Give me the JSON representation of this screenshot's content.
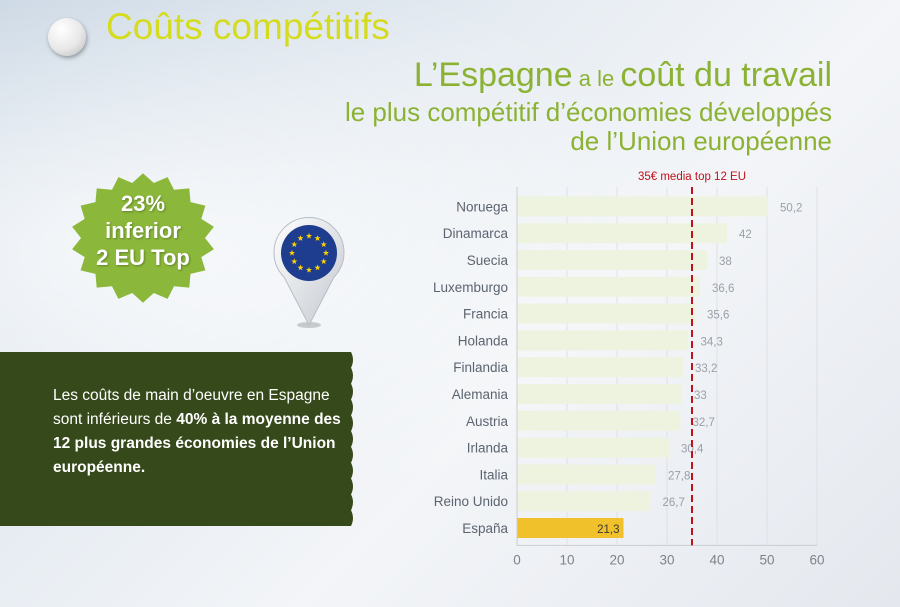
{
  "section_title": "Coûts compétitifs",
  "headline": {
    "part1": "L’Espagne",
    "part2": " a le ",
    "part3": "coût du travail",
    "line2": "le plus compétitif d’économies développés",
    "line3": "de l’Union européenne"
  },
  "badge": {
    "line1": "23%",
    "line2": "inferior",
    "line3": "2 EU Top",
    "color": "#8bb83a"
  },
  "eu_pin": {
    "icon": "eu-flag-map-pin-icon",
    "color": "#1f3d8f"
  },
  "info_box": {
    "text1": "Les coûts de main d’oeuvre en Espagne sont inférieurs de ",
    "bold1": "40%",
    "bold2": "à la moyenne des 12 plus grandes économies de l’Union européenne.",
    "background": "#36491a"
  },
  "chart_data": {
    "type": "bar",
    "orientation": "horizontal",
    "categories": [
      "Noruega",
      "Dinamarca",
      "Suecia",
      "Luxemburgo",
      "Francia",
      "Holanda",
      "Finlandia",
      "Alemania",
      "Austria",
      "Irlanda",
      "Italia",
      "Reino Unido",
      "España"
    ],
    "values": [
      50.2,
      42,
      38,
      36.6,
      35.6,
      34.3,
      33.2,
      33,
      32.7,
      30.4,
      27.8,
      26.7,
      21.3
    ],
    "value_labels": [
      "50,2",
      "42",
      "38",
      "36,6",
      "35,6",
      "34,3",
      "33,2",
      "33",
      "32,7",
      "30,4",
      "27,8",
      "26,7",
      "21,3"
    ],
    "xlim": [
      0,
      60
    ],
    "xticks": [
      0,
      10,
      20,
      30,
      40,
      50,
      60
    ],
    "reference_line": {
      "value": 35,
      "label": "35€ media top 12 EU",
      "color": "#c0121b"
    },
    "bar_color": "#eef3df",
    "highlight_category": "España",
    "highlight_color": "#f0c12b",
    "grid": true
  }
}
